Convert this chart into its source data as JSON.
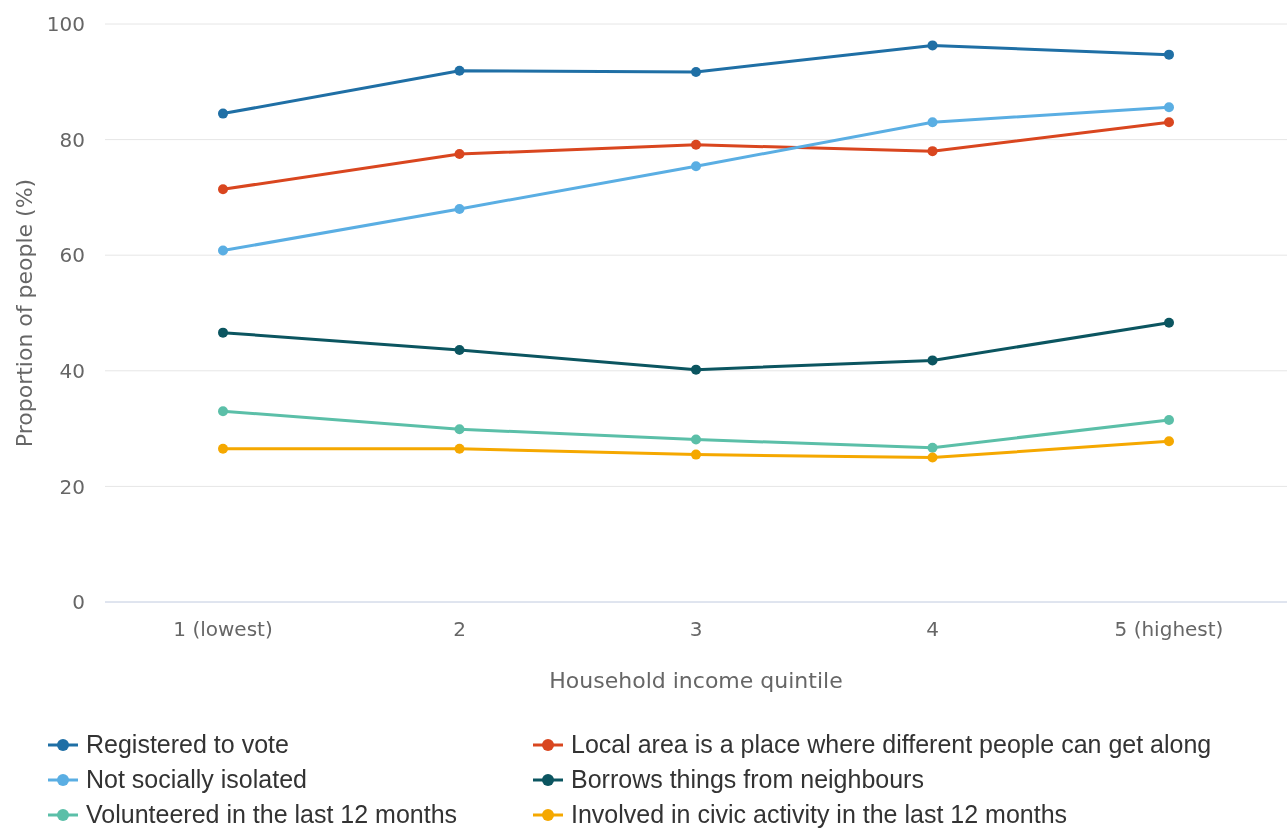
{
  "chart_data": {
    "type": "line",
    "xlabel": "Household income quintile",
    "ylabel": "Proportion of people (%)",
    "categories": [
      "1 (lowest)",
      "2",
      "3",
      "4",
      "5 (highest)"
    ],
    "series": [
      {
        "name": "Registered to vote",
        "color": "#1f6fa5",
        "values": [
          84.5,
          91.9,
          91.7,
          96.3,
          94.7
        ]
      },
      {
        "name": "Local area is a place where different people can get along",
        "color": "#d9461f",
        "values": [
          71.4,
          77.5,
          79.1,
          78.0,
          83.0
        ]
      },
      {
        "name": "Not socially isolated",
        "color": "#5aaee3",
        "values": [
          60.8,
          68.0,
          75.4,
          83.0,
          85.6
        ]
      },
      {
        "name": "Borrows things from neighbours",
        "color": "#0b5560",
        "values": [
          46.6,
          43.6,
          40.2,
          41.8,
          48.3
        ]
      },
      {
        "name": "Volunteered in the last 12 months",
        "color": "#5bbfa8",
        "values": [
          33.0,
          29.9,
          28.1,
          26.7,
          31.5
        ]
      },
      {
        "name": "Involved in civic activity in the last 12 months",
        "color": "#f5a800",
        "values": [
          26.5,
          26.5,
          25.5,
          25.0,
          27.8
        ]
      }
    ],
    "ylim": [
      0,
      100
    ],
    "yticks": [
      0,
      20,
      40,
      60,
      80,
      100
    ],
    "grid": "y",
    "legend": "bottom",
    "marker": "circle",
    "line_style": "solid"
  }
}
